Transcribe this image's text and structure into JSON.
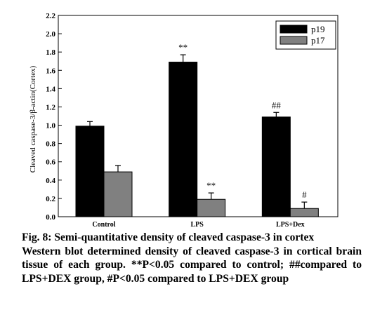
{
  "chart_data": {
    "type": "bar",
    "categories": [
      "Control",
      "LPS",
      "LPS+Dex"
    ],
    "series": [
      {
        "name": "p19",
        "color": "#000000",
        "values": [
          0.99,
          1.69,
          1.09
        ],
        "errors": [
          0.05,
          0.08,
          0.05
        ]
      },
      {
        "name": "p17",
        "color": "#808080",
        "values": [
          0.49,
          0.19,
          0.09
        ],
        "errors": [
          0.07,
          0.07,
          0.07
        ]
      }
    ],
    "annotations": [
      {
        "series": 0,
        "category": 1,
        "text": "**"
      },
      {
        "series": 0,
        "category": 2,
        "text": "##"
      },
      {
        "series": 1,
        "category": 1,
        "text": "**"
      },
      {
        "series": 1,
        "category": 2,
        "text": "#"
      }
    ],
    "ylabel": "Cleaved caspase-3/β-actin(Cortex)",
    "ylim": [
      0,
      2.2
    ],
    "yticks": [
      "0.0",
      "0.2",
      "0.4",
      "0.6",
      "0.8",
      "1.0",
      "1.2",
      "1.4",
      "1.6",
      "1.8",
      "2.0",
      "2.2"
    ],
    "grid": false,
    "legend_position": "top-right"
  },
  "caption": {
    "title": "Fig. 8: Semi-quantitative density of cleaved caspase-3 in cortex",
    "body": "Western blot determined density of cleaved caspase-3 in cortical brain tissue of each group. **P<0.05 compared to control; ##compared to LPS+DEX group, #P<0.05 compared to LPS+DEX group"
  }
}
